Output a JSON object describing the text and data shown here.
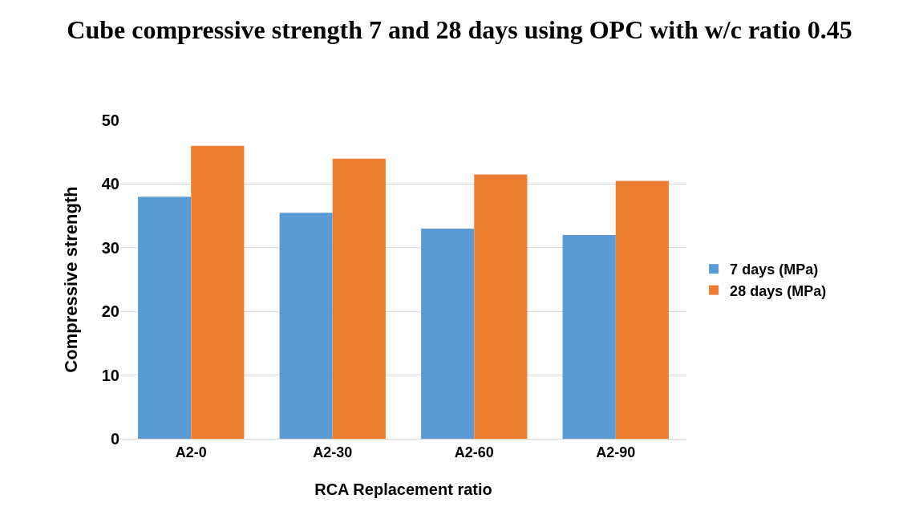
{
  "chart_data": {
    "type": "bar",
    "title": "Cube compressive strength 7 and 28 days using OPC with w/c ratio 0.45",
    "xlabel": "RCA Replacement ratio",
    "ylabel": "Compressive strength",
    "categories": [
      "A2-0",
      "A2-30",
      "A2-60",
      "A2-90"
    ],
    "series": [
      {
        "name": "7 days (MPa)",
        "color": "#5b9bd5",
        "values": [
          38,
          35.5,
          33,
          32
        ]
      },
      {
        "name": "28 days (MPa)",
        "color": "#ed7d31",
        "values": [
          46,
          44,
          41.5,
          40.5
        ]
      }
    ],
    "ylim": [
      0,
      50
    ],
    "yticks": [
      0,
      10,
      20,
      30,
      40,
      50
    ],
    "grid": "y",
    "legend": "right"
  }
}
